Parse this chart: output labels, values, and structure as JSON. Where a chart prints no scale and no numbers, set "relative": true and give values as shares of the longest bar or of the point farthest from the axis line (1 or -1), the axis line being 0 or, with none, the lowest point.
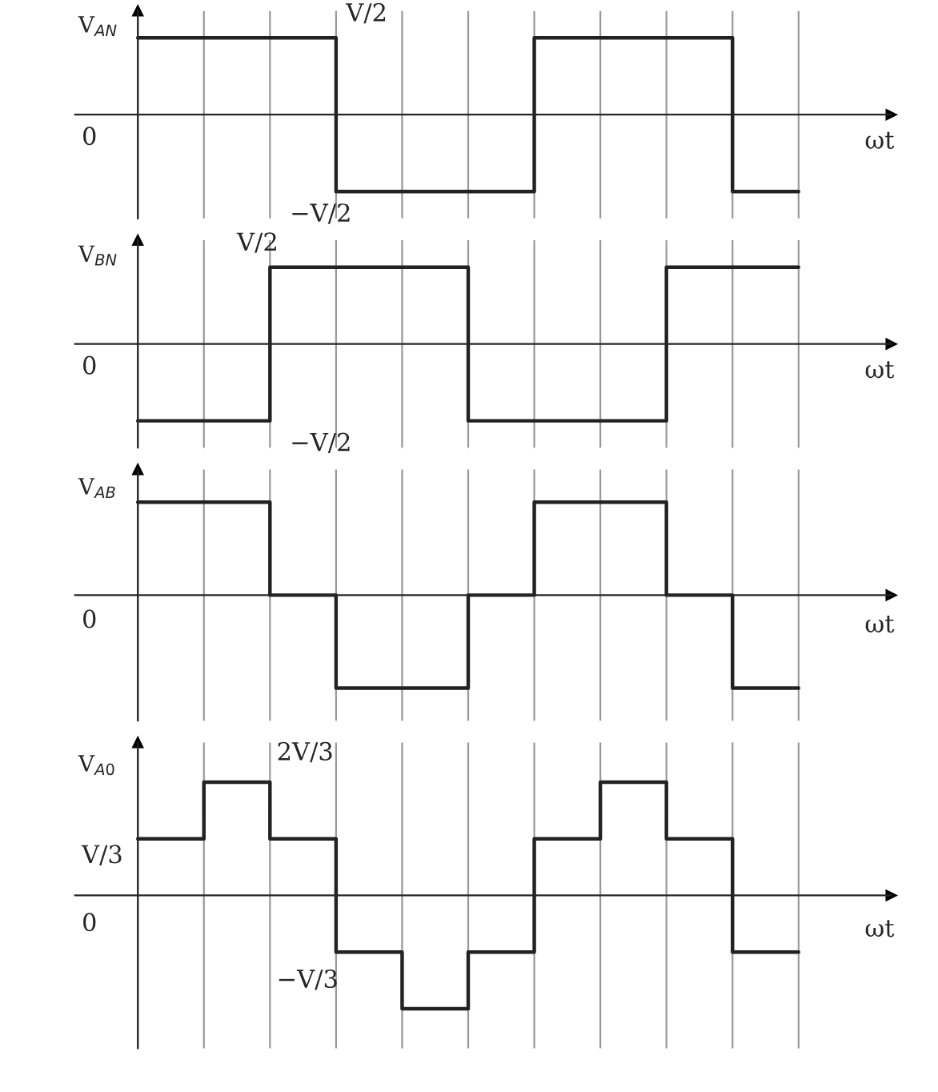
{
  "chart_data": [
    {
      "type": "step",
      "relative": true,
      "ylabel": "V$_{AN}$",
      "xlabel": "ωt",
      "grid": "x",
      "categories": [
        null,
        null,
        null,
        null,
        null,
        null,
        null,
        null,
        null,
        null,
        null
      ],
      "series": [
        {
          "color": "#222222",
          "values": [
            1,
            1,
            1,
            -1,
            -1,
            -1,
            1,
            1,
            1,
            -1,
            -1
          ]
        }
      ],
      "annotations": [
        "0",
        "V/2",
        "−V/2"
      ]
    },
    {
      "type": "step",
      "relative": true,
      "ylabel": "V$_{BN}$",
      "xlabel": "ωt",
      "grid": "x",
      "categories": [
        null,
        null,
        null,
        null,
        null,
        null,
        null,
        null,
        null,
        null,
        null
      ],
      "series": [
        {
          "color": "#222222",
          "values": [
            -1,
            -1,
            1,
            1,
            1,
            -1,
            -1,
            -1,
            1,
            1,
            1
          ]
        }
      ],
      "annotations": [
        "0",
        "V/2",
        "−V/2"
      ]
    },
    {
      "type": "step",
      "relative": true,
      "ylabel": "V$_{AB}$",
      "xlabel": "ωt",
      "grid": "x",
      "categories": [
        null,
        null,
        null,
        null,
        null,
        null,
        null,
        null,
        null,
        null,
        null
      ],
      "series": [
        {
          "color": "#222222",
          "values": [
            1,
            1,
            0,
            -1,
            -1,
            0,
            1,
            1,
            0,
            -1,
            -1
          ]
        }
      ],
      "annotations": [
        "0"
      ]
    },
    {
      "type": "step",
      "relative": true,
      "ylabel": "V$_{A0}$",
      "xlabel": "ωt",
      "grid": "x",
      "categories": [
        null,
        null,
        null,
        null,
        null,
        null,
        null,
        null,
        null,
        null,
        null
      ],
      "series": [
        {
          "color": "#222222",
          "values": [
            0.5,
            1,
            0.5,
            -0.5,
            -1,
            -0.5,
            0.5,
            1,
            0.5,
            -0.5,
            -0.5
          ]
        }
      ],
      "annotations": [
        "V/3",
        "0",
        "2V/3",
        "−V/3"
      ]
    }
  ]
}
